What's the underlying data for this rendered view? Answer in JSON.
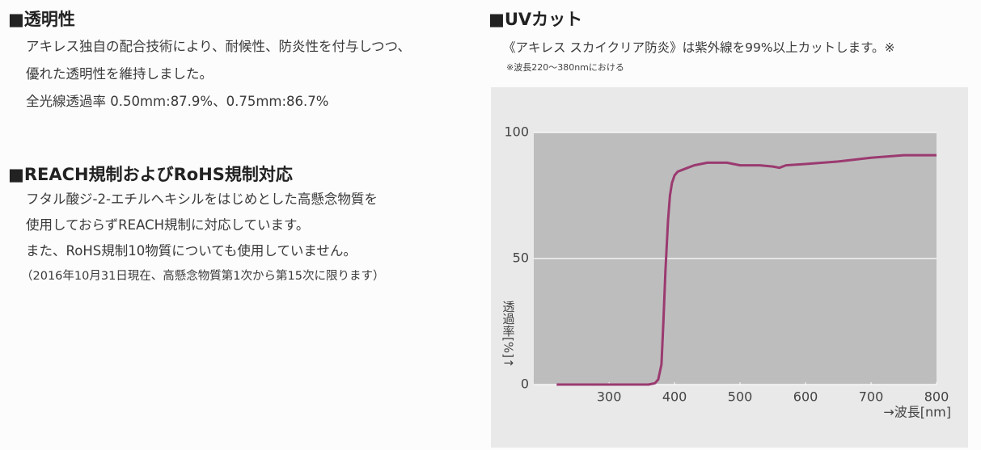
{
  "sections": [
    {
      "title": "■透明性",
      "lines": [
        "アキレス独自の配合技術により、耐候性、防炎性を付与しつつ、",
        "優れた透明性を維持しました。",
        "全光線透過率 0.50mm:87.9%、0.75mm:86.7%"
      ]
    },
    {
      "title": "■REACH規制およびRoHS規制対応",
      "lines": [
        "フタル酸ジ-2-エチルヘキシルをはじめとした高懸念物質を",
        "使用しておらずREACH規制に対応しています。",
        "また、RoHS規制10物質についても使用していません。"
      ],
      "note": "（2016年10月31日現在、高懸念物質第1次から第15次に限ります）"
    },
    {
      "title": "■UVカット",
      "lines": [
        "《アキレス スカイクリア防炎》は紫外線を99%以上カットします。※"
      ],
      "note": "※波長220〜380nmにおける"
    }
  ],
  "chart_data": {
    "type": "line",
    "y_label": "透過率[%]↑",
    "x_label": "→波長[nm]",
    "x": [
      220,
      300,
      360,
      370,
      375,
      380,
      383,
      386,
      390,
      393,
      396,
      400,
      405,
      410,
      420,
      430,
      450,
      480,
      500,
      530,
      550,
      560,
      570,
      600,
      650,
      700,
      750,
      800
    ],
    "values": [
      0,
      0,
      0,
      0.5,
      2,
      8,
      25,
      45,
      65,
      75,
      80,
      83,
      84.5,
      85,
      86,
      87,
      88,
      88,
      87,
      87,
      86.5,
      86,
      87,
      87.5,
      88.5,
      90,
      91,
      91
    ],
    "color": "#9b3a70",
    "xlim": [
      185,
      800
    ],
    "ylim": [
      0,
      100
    ],
    "xticks": [
      300,
      400,
      500,
      600,
      700,
      800
    ],
    "yticks": [
      0,
      50,
      100
    ],
    "grid": "y"
  }
}
